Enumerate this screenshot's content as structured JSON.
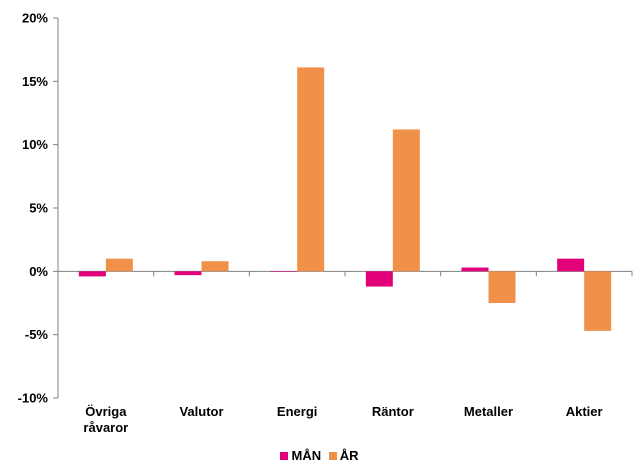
{
  "chart_data": {
    "type": "bar",
    "categories": [
      [
        "Övriga",
        "råvaror"
      ],
      [
        "Valutor"
      ],
      [
        "Energi"
      ],
      [
        "Räntor"
      ],
      [
        "Metaller"
      ],
      [
        "Aktier"
      ]
    ],
    "series": [
      {
        "name": "MÅN",
        "color": "#E2007A",
        "values": [
          -0.4,
          -0.3,
          0.0,
          -1.2,
          0.3,
          1.0
        ]
      },
      {
        "name": "ÅR",
        "color": "#F0914A",
        "values": [
          1.0,
          0.8,
          16.1,
          11.2,
          -2.5,
          -4.7
        ]
      }
    ],
    "ylim": [
      -10,
      20
    ],
    "yticks": [
      -10,
      -5,
      0,
      5,
      10,
      15,
      20
    ],
    "ytick_labels": [
      "-10%",
      "-5%",
      "0%",
      "5%",
      "10%",
      "15%",
      "20%"
    ],
    "grid": false,
    "legend_position": "bottom"
  }
}
